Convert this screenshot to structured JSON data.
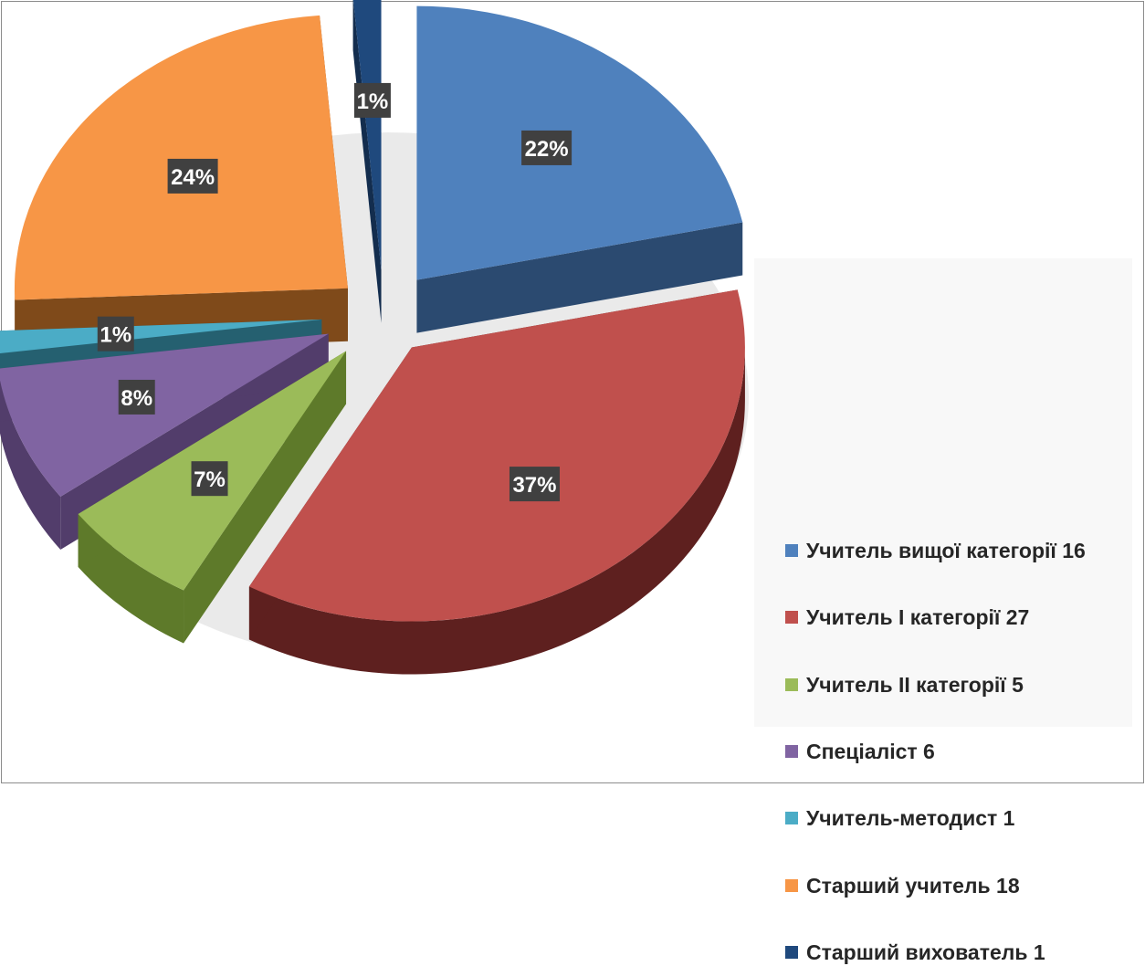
{
  "chart_data": {
    "type": "pie",
    "title": "",
    "slices": [
      {
        "label": "Учитель вищої категорії 16",
        "value": 16,
        "percent_label": "22%",
        "color": "#4F81BD",
        "side_color": "#2B4A70"
      },
      {
        "label": "Учитель І категорії 27",
        "value": 27,
        "percent_label": "37%",
        "color": "#C0504D",
        "side_color": "#5E201F"
      },
      {
        "label": "Учитель ІІ категорії 5",
        "value": 5,
        "percent_label": "7%",
        "color": "#9BBB59",
        "side_color": "#5E7A2A"
      },
      {
        "label": "Спеціаліст  6",
        "value": 6,
        "percent_label": "8%",
        "color": "#8064A2",
        "side_color": "#523D6B"
      },
      {
        "label": "Учитель-методист  1",
        "value": 1,
        "percent_label": "1%",
        "color": "#4BACC6",
        "side_color": "#256070"
      },
      {
        "label": "Старший учитель 18",
        "value": 18,
        "percent_label": "24%",
        "color": "#F79646",
        "side_color": "#7F4A1A"
      },
      {
        "label": "Старший вихователь 1",
        "value": 1,
        "percent_label": "1%",
        "color": "#1F497D",
        "side_color": "#132D4E"
      }
    ],
    "legend_position": "right"
  }
}
